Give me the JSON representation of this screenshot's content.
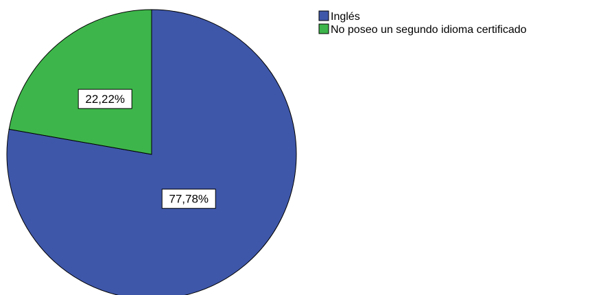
{
  "heading_fragment": "",
  "chart_data": {
    "type": "pie",
    "title": "",
    "legend_position": "top-right",
    "slices": [
      {
        "name": "Inglés",
        "value": 77.78,
        "label": "77,78%",
        "color": "#3f57a9"
      },
      {
        "name": "No poseo un segundo idioma certificado",
        "value": 22.22,
        "label": "22,22%",
        "color": "#3db54a"
      }
    ]
  }
}
